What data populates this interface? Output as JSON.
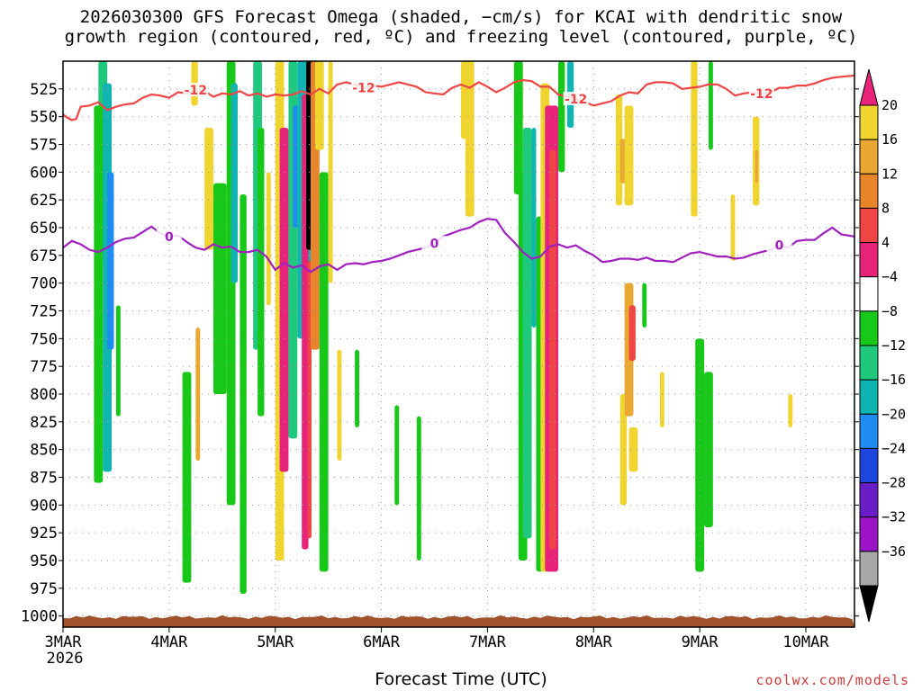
{
  "title_line1": "2026030300 GFS Forecast Omega (shaded, −cm/s) for KCAI with dendritic snow",
  "title_line2": "growth region (contoured, red, ºC) and freezing level (contoured, purple, ºC)",
  "x_axis_title": "Forecast Time (UTC)",
  "credit": "coolwx.com/models",
  "colors": {
    "dgz_contour": "#f04545",
    "freezing_contour": "#a020c0",
    "ground": "#a0522d",
    "grid": "#999999"
  },
  "chart_data": {
    "type": "heatmap",
    "x_ticks": [
      {
        "label": "3MAR",
        "sub": "2026",
        "hour": 0
      },
      {
        "label": "4MAR",
        "hour": 24
      },
      {
        "label": "5MAR",
        "hour": 48
      },
      {
        "label": "6MAR",
        "hour": 72
      },
      {
        "label": "7MAR",
        "hour": 96
      },
      {
        "label": "8MAR",
        "hour": 120
      },
      {
        "label": "9MAR",
        "hour": 144
      },
      {
        "label": "10MAR",
        "hour": 168
      }
    ],
    "xlim_hours": [
      0,
      179
    ],
    "y_ticks": [
      525,
      550,
      575,
      600,
      625,
      650,
      675,
      700,
      725,
      750,
      775,
      800,
      825,
      850,
      875,
      900,
      925,
      950,
      975,
      1000
    ],
    "ylim_hpa": [
      500,
      1010
    ],
    "colorbar": {
      "labels": [
        "20",
        "16",
        "12",
        "8",
        "4",
        "−4",
        "−8",
        "−12",
        "−16",
        "−20",
        "−24",
        "−28",
        "−32",
        "−36"
      ],
      "colors": [
        "#f0d530",
        "#e8a832",
        "#e8842a",
        "#f04545",
        "#e8237a",
        "#ffffff",
        "#18c818",
        "#1ec87c",
        "#10b4b0",
        "#1e8cf0",
        "#1e46dc",
        "#6a1ec8",
        "#9b14c8",
        "#a8a8a8"
      ],
      "top_color": "#e8237a",
      "bottom_color": "#000000"
    },
    "dgz_contour": {
      "label": "-12",
      "points": [
        [
          0,
          548
        ],
        [
          1,
          551
        ],
        [
          2,
          553
        ],
        [
          3,
          552
        ],
        [
          4,
          541
        ],
        [
          6,
          540
        ],
        [
          8,
          537
        ],
        [
          10,
          544
        ],
        [
          12,
          541
        ],
        [
          14,
          539
        ],
        [
          16,
          538
        ],
        [
          18,
          533
        ],
        [
          20,
          530
        ],
        [
          22,
          531
        ],
        [
          24,
          533
        ],
        [
          26,
          528
        ],
        [
          28,
          529
        ],
        [
          30,
          526
        ],
        [
          32,
          527
        ],
        [
          34,
          532
        ],
        [
          36,
          529
        ],
        [
          38,
          530
        ],
        [
          40,
          527
        ],
        [
          42,
          531
        ],
        [
          44,
          529
        ],
        [
          46,
          532
        ],
        [
          48,
          530
        ],
        [
          50,
          531
        ],
        [
          52,
          530
        ],
        [
          54,
          527
        ],
        [
          56,
          530
        ],
        [
          58,
          525
        ],
        [
          60,
          529
        ],
        [
          62,
          521
        ],
        [
          64,
          519
        ],
        [
          66,
          521
        ],
        [
          68,
          524
        ],
        [
          70,
          522
        ],
        [
          72,
          523
        ],
        [
          74,
          521
        ],
        [
          76,
          519
        ],
        [
          78,
          521
        ],
        [
          80,
          523
        ],
        [
          82,
          528
        ],
        [
          84,
          529
        ],
        [
          86,
          530
        ],
        [
          88,
          524
        ],
        [
          90,
          521
        ],
        [
          92,
          524
        ],
        [
          94,
          519
        ],
        [
          96,
          523
        ],
        [
          98,
          528
        ],
        [
          100,
          524
        ],
        [
          102,
          519
        ],
        [
          104,
          517
        ],
        [
          106,
          518
        ],
        [
          108,
          523
        ],
        [
          110,
          523
        ],
        [
          112,
          530
        ],
        [
          114,
          532
        ],
        [
          116,
          534
        ],
        [
          118,
          537
        ],
        [
          120,
          540
        ],
        [
          122,
          538
        ],
        [
          124,
          536
        ],
        [
          126,
          531
        ],
        [
          128,
          528
        ],
        [
          130,
          529
        ],
        [
          132,
          521
        ],
        [
          134,
          519
        ],
        [
          136,
          519
        ],
        [
          138,
          520
        ],
        [
          140,
          525
        ],
        [
          142,
          524
        ],
        [
          144,
          523
        ],
        [
          146,
          521
        ],
        [
          148,
          521
        ],
        [
          150,
          525
        ],
        [
          152,
          531
        ],
        [
          154,
          529
        ],
        [
          156,
          528
        ],
        [
          158,
          529
        ],
        [
          160,
          528
        ],
        [
          162,
          524
        ],
        [
          164,
          524
        ],
        [
          166,
          522
        ],
        [
          168,
          522
        ],
        [
          170,
          520
        ],
        [
          172,
          517
        ],
        [
          174,
          515
        ],
        [
          176,
          514
        ],
        [
          179,
          513
        ]
      ],
      "label_hours": [
        30,
        68,
        116,
        158
      ]
    },
    "freezing_contour": {
      "label": "0",
      "points": [
        [
          0,
          668
        ],
        [
          2,
          662
        ],
        [
          4,
          665
        ],
        [
          6,
          670
        ],
        [
          8,
          672
        ],
        [
          10,
          668
        ],
        [
          12,
          663
        ],
        [
          14,
          660
        ],
        [
          16,
          659
        ],
        [
          18,
          654
        ],
        [
          20,
          649
        ],
        [
          22,
          655
        ],
        [
          24,
          658
        ],
        [
          26,
          657
        ],
        [
          28,
          663
        ],
        [
          30,
          668
        ],
        [
          32,
          670
        ],
        [
          34,
          665
        ],
        [
          36,
          668
        ],
        [
          38,
          667
        ],
        [
          40,
          672
        ],
        [
          42,
          672
        ],
        [
          44,
          670
        ],
        [
          46,
          676
        ],
        [
          48,
          688
        ],
        [
          50,
          682
        ],
        [
          52,
          686
        ],
        [
          54,
          684
        ],
        [
          56,
          690
        ],
        [
          58,
          685
        ],
        [
          60,
          683
        ],
        [
          62,
          688
        ],
        [
          64,
          683
        ],
        [
          66,
          682
        ],
        [
          68,
          683
        ],
        [
          70,
          681
        ],
        [
          72,
          680
        ],
        [
          74,
          678
        ],
        [
          76,
          675
        ],
        [
          78,
          672
        ],
        [
          80,
          670
        ],
        [
          82,
          668
        ],
        [
          84,
          664
        ],
        [
          86,
          658
        ],
        [
          88,
          655
        ],
        [
          90,
          652
        ],
        [
          92,
          650
        ],
        [
          94,
          645
        ],
        [
          96,
          642
        ],
        [
          98,
          643
        ],
        [
          100,
          655
        ],
        [
          102,
          663
        ],
        [
          104,
          672
        ],
        [
          106,
          678
        ],
        [
          108,
          676
        ],
        [
          110,
          667
        ],
        [
          112,
          665
        ],
        [
          114,
          668
        ],
        [
          116,
          666
        ],
        [
          118,
          671
        ],
        [
          120,
          675
        ],
        [
          122,
          681
        ],
        [
          124,
          680
        ],
        [
          126,
          678
        ],
        [
          128,
          678
        ],
        [
          130,
          679
        ],
        [
          132,
          677
        ],
        [
          134,
          680
        ],
        [
          136,
          680
        ],
        [
          138,
          681
        ],
        [
          140,
          677
        ],
        [
          142,
          673
        ],
        [
          144,
          672
        ],
        [
          146,
          674
        ],
        [
          148,
          676
        ],
        [
          150,
          676
        ],
        [
          152,
          678
        ],
        [
          154,
          677
        ],
        [
          156,
          674
        ],
        [
          158,
          672
        ],
        [
          160,
          670
        ],
        [
          162,
          666
        ],
        [
          164,
          668
        ],
        [
          166,
          662
        ],
        [
          168,
          661
        ],
        [
          170,
          661
        ],
        [
          172,
          655
        ],
        [
          174,
          650
        ],
        [
          176,
          656
        ],
        [
          179,
          658
        ]
      ],
      "label_hours": [
        24,
        84,
        163
      ]
    },
    "omega_cells": [
      {
        "h0": 8,
        "h1": 10,
        "p0": 500,
        "p1": 680,
        "c": "#1ec87c"
      },
      {
        "h0": 9,
        "h1": 11,
        "p0": 520,
        "p1": 870,
        "c": "#10b4b0"
      },
      {
        "h0": 10,
        "h1": 11.5,
        "p0": 600,
        "p1": 760,
        "c": "#1e8cf0"
      },
      {
        "h0": 7,
        "h1": 9,
        "p0": 540,
        "p1": 880,
        "c": "#18c818"
      },
      {
        "h0": 12,
        "h1": 13,
        "p0": 720,
        "p1": 820,
        "c": "#18c818"
      },
      {
        "h0": 27,
        "h1": 29,
        "p0": 780,
        "p1": 970,
        "c": "#18c818"
      },
      {
        "h0": 30,
        "h1": 31,
        "p0": 740,
        "p1": 860,
        "c": "#e8a832"
      },
      {
        "h0": 29,
        "h1": 30.5,
        "p0": 500,
        "p1": 540,
        "c": "#f0d530"
      },
      {
        "h0": 32,
        "h1": 34,
        "p0": 560,
        "p1": 670,
        "c": "#f0d530"
      },
      {
        "h0": 34,
        "h1": 37,
        "p0": 610,
        "p1": 800,
        "c": "#18c818"
      },
      {
        "h0": 37,
        "h1": 39,
        "p0": 500,
        "p1": 900,
        "c": "#18c818"
      },
      {
        "h0": 38,
        "h1": 39.5,
        "p0": 520,
        "p1": 700,
        "c": "#10b4b0"
      },
      {
        "h0": 40,
        "h1": 41.5,
        "p0": 620,
        "p1": 980,
        "c": "#18c818"
      },
      {
        "h0": 43,
        "h1": 45,
        "p0": 500,
        "p1": 760,
        "c": "#1ec87c"
      },
      {
        "h0": 44,
        "h1": 45.5,
        "p0": 560,
        "p1": 820,
        "c": "#18c818"
      },
      {
        "h0": 46,
        "h1": 47,
        "p0": 600,
        "p1": 720,
        "c": "#f0d530"
      },
      {
        "h0": 48,
        "h1": 50,
        "p0": 500,
        "p1": 950,
        "c": "#f0d530"
      },
      {
        "h0": 49,
        "h1": 51,
        "p0": 560,
        "p1": 870,
        "c": "#e8237a"
      },
      {
        "h0": 51,
        "h1": 53,
        "p0": 500,
        "p1": 840,
        "c": "#1ec87c"
      },
      {
        "h0": 52,
        "h1": 54,
        "p0": 540,
        "p1": 650,
        "c": "#1e8cf0"
      },
      {
        "h0": 53,
        "h1": 56,
        "p0": 500,
        "p1": 750,
        "c": "#10b4b0"
      },
      {
        "h0": 54,
        "h1": 55.5,
        "p0": 530,
        "p1": 940,
        "c": "#e8237a"
      },
      {
        "h0": 55,
        "h1": 56.5,
        "p0": 500,
        "p1": 670,
        "c": "#000000"
      },
      {
        "h0": 55.3,
        "h1": 56.2,
        "p0": 680,
        "p1": 930,
        "c": "#f04545"
      },
      {
        "h0": 56,
        "h1": 58,
        "p0": 500,
        "p1": 760,
        "c": "#e8842a"
      },
      {
        "h0": 57,
        "h1": 59,
        "p0": 500,
        "p1": 580,
        "c": "#f0d530"
      },
      {
        "h0": 58,
        "h1": 60,
        "p0": 600,
        "p1": 960,
        "c": "#18c818"
      },
      {
        "h0": 60,
        "h1": 61,
        "p0": 500,
        "p1": 700,
        "c": "#f0d530"
      },
      {
        "h0": 62,
        "h1": 63,
        "p0": 760,
        "p1": 860,
        "c": "#f0d530"
      },
      {
        "h0": 66,
        "h1": 67,
        "p0": 760,
        "p1": 830,
        "c": "#18c818"
      },
      {
        "h0": 75,
        "h1": 76,
        "p0": 810,
        "p1": 900,
        "c": "#18c818"
      },
      {
        "h0": 80,
        "h1": 81,
        "p0": 820,
        "p1": 950,
        "c": "#18c818"
      },
      {
        "h0": 91,
        "h1": 93,
        "p0": 500,
        "p1": 640,
        "c": "#f0d530"
      },
      {
        "h0": 90,
        "h1": 91.5,
        "p0": 500,
        "p1": 570,
        "c": "#f0d530"
      },
      {
        "h0": 102,
        "h1": 104,
        "p0": 500,
        "p1": 620,
        "c": "#18c818"
      },
      {
        "h0": 103,
        "h1": 105,
        "p0": 600,
        "p1": 950,
        "c": "#18c818"
      },
      {
        "h0": 104,
        "h1": 106,
        "p0": 560,
        "p1": 930,
        "c": "#1ec87c"
      },
      {
        "h0": 106,
        "h1": 107,
        "p0": 560,
        "p1": 740,
        "c": "#10b4b0"
      },
      {
        "h0": 107,
        "h1": 108.5,
        "p0": 640,
        "p1": 960,
        "c": "#18c818"
      },
      {
        "h0": 108,
        "h1": 110,
        "p0": 520,
        "p1": 960,
        "c": "#f0d530"
      },
      {
        "h0": 109,
        "h1": 112,
        "p0": 540,
        "p1": 960,
        "c": "#e8237a"
      },
      {
        "h0": 110,
        "h1": 111.5,
        "p0": 580,
        "p1": 940,
        "c": "#f04545"
      },
      {
        "h0": 112,
        "h1": 113.5,
        "p0": 500,
        "p1": 600,
        "c": "#18c818"
      },
      {
        "h0": 114,
        "h1": 115.5,
        "p0": 500,
        "p1": 560,
        "c": "#10b4b0"
      },
      {
        "h0": 125,
        "h1": 126.5,
        "p0": 530,
        "p1": 630,
        "c": "#f0d530"
      },
      {
        "h0": 126,
        "h1": 128,
        "p0": 570,
        "p1": 610,
        "c": "#e8a832"
      },
      {
        "h0": 127,
        "h1": 129,
        "p0": 540,
        "p1": 630,
        "c": "#f0d530"
      },
      {
        "h0": 126,
        "h1": 127.5,
        "p0": 800,
        "p1": 900,
        "c": "#f0d530"
      },
      {
        "h0": 127,
        "h1": 129,
        "p0": 700,
        "p1": 820,
        "c": "#e8a832"
      },
      {
        "h0": 128,
        "h1": 129.5,
        "p0": 720,
        "p1": 770,
        "c": "#f04545"
      },
      {
        "h0": 128,
        "h1": 130,
        "p0": 830,
        "p1": 870,
        "c": "#f0d530"
      },
      {
        "h0": 131,
        "h1": 132,
        "p0": 700,
        "p1": 740,
        "c": "#18c818"
      },
      {
        "h0": 135,
        "h1": 136,
        "p0": 780,
        "p1": 830,
        "c": "#f0d530"
      },
      {
        "h0": 142,
        "h1": 143.5,
        "p0": 500,
        "p1": 640,
        "c": "#f0d530"
      },
      {
        "h0": 143,
        "h1": 145,
        "p0": 750,
        "p1": 960,
        "c": "#18c818"
      },
      {
        "h0": 145,
        "h1": 147,
        "p0": 780,
        "p1": 920,
        "c": "#18c818"
      },
      {
        "h0": 146,
        "h1": 147,
        "p0": 500,
        "p1": 580,
        "c": "#18c818"
      },
      {
        "h0": 151,
        "h1": 152,
        "p0": 620,
        "p1": 680,
        "c": "#f0d530"
      },
      {
        "h0": 156,
        "h1": 157.5,
        "p0": 550,
        "p1": 630,
        "c": "#f0d530"
      },
      {
        "h0": 156.5,
        "h1": 157.2,
        "p0": 580,
        "p1": 610,
        "c": "#e8a832"
      },
      {
        "h0": 164,
        "h1": 165,
        "p0": 800,
        "p1": 830,
        "c": "#f0d530"
      }
    ]
  }
}
